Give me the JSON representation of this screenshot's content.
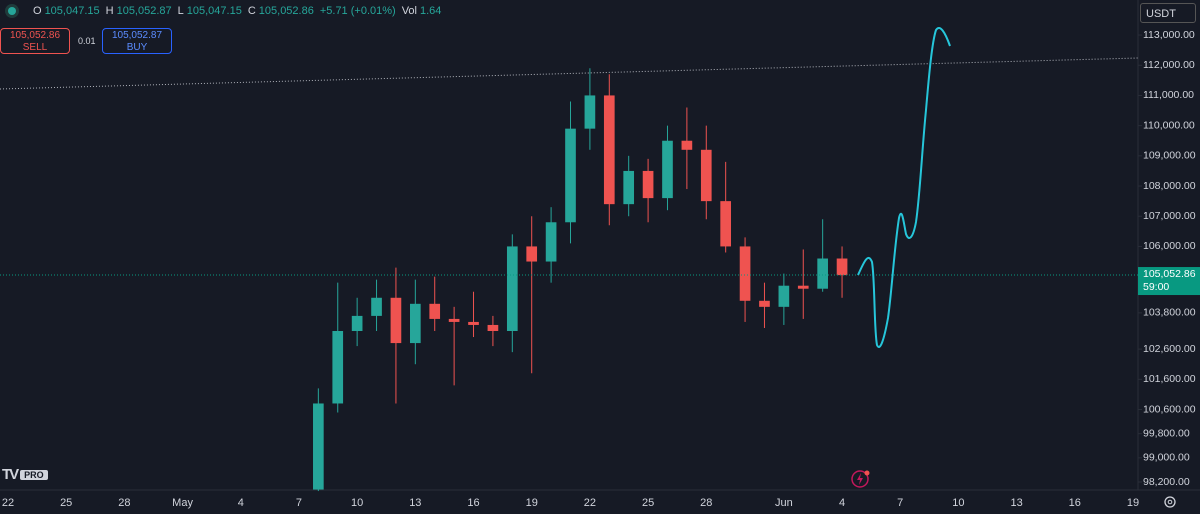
{
  "toolbar": {
    "ohlc_legend": [
      {
        "label": "O",
        "value": "105,047.15"
      },
      {
        "label": "H",
        "value": "105,052.87"
      },
      {
        "label": "L",
        "value": "105,047.15"
      },
      {
        "label": "C",
        "value": "105,052.86"
      }
    ],
    "change": "+5.71 (+0.01%)",
    "volume": {
      "label": "Vol",
      "value": "1.64"
    },
    "order_panel": {
      "sell_price": "105,052.86",
      "sell": "SELL",
      "quantity": "0.01",
      "buy_price": "105,052.87",
      "buy": "BUY"
    },
    "currency": "USDT",
    "logo_badge": "PRO"
  },
  "chart_data": {
    "type": "candlestick",
    "categories": [
      "22",
      null,
      null,
      "25",
      null,
      null,
      "28",
      null,
      null,
      "May",
      null,
      null,
      "4",
      null,
      null,
      "7",
      null,
      null,
      "10",
      null,
      null,
      "13",
      null,
      null,
      "16",
      null,
      null,
      "19",
      null,
      null,
      "22",
      null,
      null,
      "25",
      null,
      null,
      "28",
      null,
      null,
      null,
      "Jun",
      null,
      null,
      "4",
      null,
      null,
      "7",
      null,
      null,
      "10",
      null,
      null,
      "13",
      null,
      null,
      "16",
      null,
      null,
      "19"
    ],
    "open": [
      null,
      null,
      null,
      null,
      null,
      null,
      null,
      null,
      null,
      null,
      null,
      null,
      null,
      null,
      null,
      null,
      97950,
      100800,
      103200,
      103700,
      104300,
      102800,
      104100,
      103600,
      103500,
      103400,
      103200,
      106000,
      105500,
      106800,
      109900,
      111000,
      107400,
      108500,
      107600,
      109500,
      109200,
      107500,
      106000,
      104200,
      104000,
      104700,
      104600,
      105600,
      null,
      null,
      null,
      null,
      null,
      null,
      null,
      null,
      null,
      null,
      null,
      null,
      null,
      null,
      null
    ],
    "high": [
      null,
      null,
      null,
      null,
      null,
      null,
      null,
      null,
      null,
      null,
      null,
      null,
      null,
      null,
      null,
      null,
      101300,
      104800,
      104300,
      104900,
      105300,
      104900,
      105000,
      104000,
      104500,
      103700,
      106400,
      107000,
      107300,
      110800,
      111900,
      111700,
      109000,
      108900,
      110000,
      110600,
      110000,
      108800,
      106300,
      104800,
      105100,
      105900,
      106900,
      106000,
      null,
      null,
      null,
      null,
      null,
      null,
      null,
      null,
      null,
      null,
      null,
      null,
      null,
      null,
      null
    ],
    "low": [
      null,
      null,
      null,
      null,
      null,
      null,
      null,
      null,
      null,
      null,
      null,
      null,
      null,
      null,
      null,
      null,
      97900,
      100500,
      102700,
      103200,
      100800,
      102100,
      103200,
      101400,
      103000,
      102700,
      102500,
      101800,
      104800,
      106100,
      109200,
      106700,
      107000,
      106800,
      107200,
      107900,
      106900,
      105800,
      103500,
      103300,
      103400,
      103600,
      104500,
      104300,
      null,
      null,
      null,
      null,
      null,
      null,
      null,
      null,
      null,
      null,
      null,
      null,
      null,
      null,
      null
    ],
    "close": [
      null,
      null,
      null,
      null,
      null,
      null,
      null,
      null,
      null,
      null,
      null,
      null,
      null,
      null,
      null,
      null,
      100800,
      103200,
      103700,
      104300,
      102800,
      104100,
      103600,
      103500,
      103400,
      103200,
      106000,
      105500,
      106800,
      109900,
      111000,
      107400,
      108500,
      107600,
      109500,
      109200,
      107500,
      106000,
      104200,
      104000,
      104700,
      104600,
      105600,
      105050,
      null,
      null,
      null,
      null,
      null,
      null,
      null,
      null,
      null,
      null,
      null,
      null,
      null,
      null,
      null
    ],
    "up_color": "#26a69a",
    "down_color": "#ef5350",
    "ylim": [
      97935,
      114160
    ],
    "yticks": [
      {
        "value": 113000,
        "label": "113,000.00"
      },
      {
        "value": 112000,
        "label": "112,000.00"
      },
      {
        "value": 111000,
        "label": "111,000.00"
      },
      {
        "value": 110000,
        "label": "110,000.00"
      },
      {
        "value": 109000,
        "label": "109,000.00"
      },
      {
        "value": 108000,
        "label": "108,000.00"
      },
      {
        "value": 107000,
        "label": "107,000.00"
      },
      {
        "value": 106000,
        "label": "106,000.00"
      },
      {
        "value": 103800,
        "label": "103,800.00"
      },
      {
        "value": 102600,
        "label": "102,600.00"
      },
      {
        "value": 101600,
        "label": "101,600.00"
      },
      {
        "value": 100600,
        "label": "100,600.00"
      },
      {
        "value": 99800,
        "label": "99,800.00"
      },
      {
        "value": 99000,
        "label": "99,000.00"
      },
      {
        "value": 98200,
        "label": "98,200.00"
      }
    ],
    "last_price": {
      "value": 105052.86,
      "label": "105,052.86"
    },
    "countdown": "59:00",
    "last_price_color": "#089981"
  }
}
